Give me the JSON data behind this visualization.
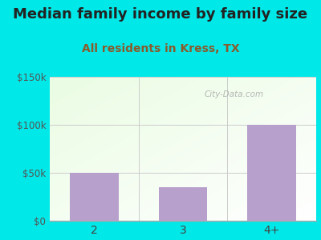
{
  "title": "Median family income by family size",
  "subtitle": "All residents in Kress, TX",
  "categories": [
    "2",
    "3",
    "4+"
  ],
  "values": [
    50000,
    35000,
    100000
  ],
  "bar_color": "#b8a0cc",
  "outer_bg": "#00e8e8",
  "title_color": "#222222",
  "subtitle_color": "#8B5A2B",
  "yticks": [
    0,
    50000,
    100000,
    150000
  ],
  "ytick_labels": [
    "$0",
    "$50k",
    "$100k",
    "$150k"
  ],
  "ylim": [
    0,
    150000
  ],
  "watermark": "City-Data.com",
  "grid_color": "#cccccc",
  "axis_line_color": "#aaaaaa",
  "title_fontsize": 13,
  "subtitle_fontsize": 10
}
